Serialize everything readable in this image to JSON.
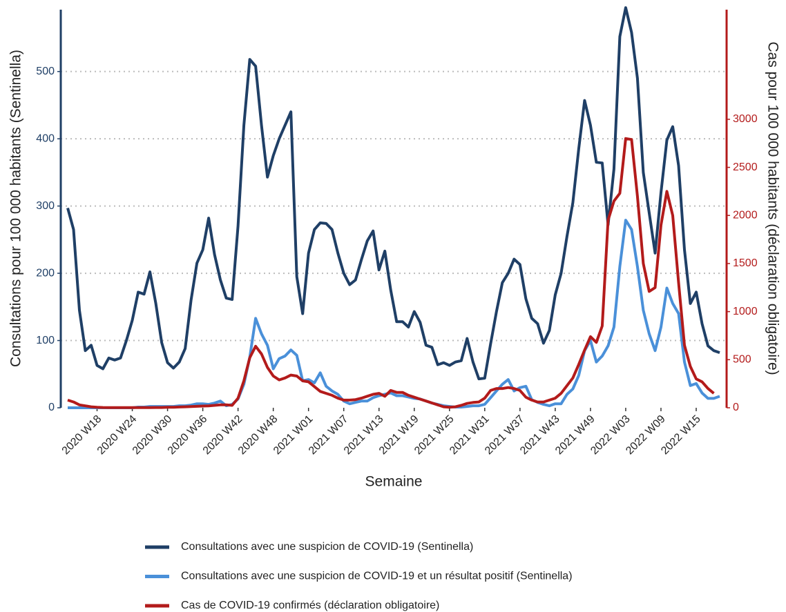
{
  "chart_data": {
    "type": "line",
    "x_label": "Semaine",
    "y_label": "Consultations pour 100 000 habitants (Sentinella)",
    "y2_label": "Cas pour 100 000 habitants (déclaration obligatoire)",
    "categories": [
      null,
      null,
      null,
      null,
      null,
      "2020 W18",
      null,
      null,
      null,
      null,
      null,
      "2020 W24",
      null,
      null,
      null,
      null,
      null,
      "2020 W30",
      null,
      null,
      null,
      null,
      null,
      "2020 W36",
      null,
      null,
      null,
      null,
      null,
      "2020 W42",
      null,
      null,
      null,
      null,
      null,
      "2020 W48",
      null,
      null,
      null,
      null,
      null,
      "2021 W01",
      null,
      null,
      null,
      null,
      null,
      "2021 W07",
      null,
      null,
      null,
      null,
      null,
      "2021 W13",
      null,
      null,
      null,
      null,
      null,
      "2021 W19",
      null,
      null,
      null,
      null,
      null,
      "2021 W25",
      null,
      null,
      null,
      null,
      null,
      "2021 W31",
      null,
      null,
      null,
      null,
      null,
      "2021 W37",
      null,
      null,
      null,
      null,
      null,
      "2021 W43",
      null,
      null,
      null,
      null,
      null,
      "2021 W49",
      null,
      null,
      null,
      null,
      null,
      "2022 W03",
      null,
      null,
      null,
      null,
      null,
      "2022 W09",
      null,
      null,
      null,
      null,
      null,
      "2022 W15",
      null,
      null,
      null,
      null
    ],
    "series": [
      {
        "name": "Consultations avec une suspicion de COVID-19 (Sentinella)",
        "color": "#1f3f66",
        "axis": "y",
        "values": [
          297,
          265,
          145,
          85,
          93,
          63,
          58,
          74,
          71,
          74,
          100,
          130,
          172,
          169,
          202,
          155,
          97,
          67,
          59,
          68,
          88,
          160,
          215,
          235,
          282,
          228,
          190,
          163,
          161,
          270,
          420,
          518,
          508,
          420,
          343,
          375,
          400,
          420,
          440,
          195,
          140,
          230,
          265,
          275,
          274,
          265,
          230,
          200,
          183,
          190,
          220,
          248,
          263,
          205,
          233,
          175,
          128,
          128,
          120,
          143,
          127,
          93,
          90,
          64,
          67,
          63,
          68,
          70,
          103,
          68,
          43,
          44,
          95,
          143,
          186,
          200,
          221,
          213,
          162,
          133,
          125,
          96,
          115,
          168,
          200,
          255,
          305,
          385,
          457,
          420,
          365,
          364,
          272,
          355,
          552,
          595,
          558,
          490,
          350,
          290,
          230,
          320,
          398,
          418,
          360,
          235,
          155,
          172,
          125,
          92,
          85,
          82
        ]
      },
      {
        "name": "Consultations avec une suspicion de COVID-19 et un résultat positif (Sentinella)",
        "color": "#4a90d9",
        "axis": "y",
        "values": [
          0,
          0,
          0,
          0,
          0,
          0,
          0,
          0,
          0,
          0,
          0,
          0,
          1,
          1,
          2,
          2,
          2,
          2,
          2,
          3,
          3,
          4,
          6,
          6,
          5,
          7,
          10,
          3,
          5,
          13,
          35,
          75,
          133,
          110,
          93,
          58,
          73,
          77,
          86,
          78,
          40,
          42,
          37,
          52,
          32,
          25,
          20,
          10,
          6,
          8,
          10,
          10,
          15,
          18,
          20,
          22,
          18,
          18,
          16,
          14,
          13,
          10,
          7,
          5,
          3,
          2,
          1,
          1,
          2,
          3,
          3,
          5,
          15,
          25,
          35,
          42,
          25,
          30,
          32,
          12,
          8,
          5,
          3,
          6,
          6,
          20,
          28,
          48,
          85,
          100,
          68,
          77,
          92,
          120,
          210,
          279,
          265,
          210,
          145,
          110,
          85,
          120,
          178,
          155,
          140,
          68,
          33,
          36,
          22,
          14,
          14,
          17
        ]
      },
      {
        "name": "Cas de COVID-19 confirmés (déclaration obligatoire)",
        "color": "#b31b1b",
        "axis": "y2",
        "values": [
          80,
          60,
          30,
          20,
          10,
          5,
          3,
          2,
          2,
          2,
          2,
          2,
          2,
          2,
          2,
          3,
          3,
          5,
          5,
          8,
          10,
          12,
          15,
          18,
          20,
          25,
          30,
          30,
          25,
          100,
          280,
          520,
          640,
          560,
          420,
          330,
          290,
          310,
          340,
          330,
          280,
          270,
          220,
          170,
          150,
          130,
          100,
          80,
          80,
          85,
          100,
          120,
          140,
          150,
          120,
          180,
          160,
          160,
          130,
          110,
          90,
          70,
          50,
          30,
          10,
          5,
          10,
          25,
          45,
          55,
          60,
          100,
          180,
          200,
          200,
          210,
          200,
          180,
          110,
          80,
          60,
          60,
          80,
          100,
          150,
          230,
          310,
          450,
          600,
          740,
          680,
          850,
          1950,
          2150,
          2230,
          2800,
          2790,
          2200,
          1500,
          1210,
          1250,
          1900,
          2250,
          2000,
          1300,
          650,
          430,
          300,
          270,
          200,
          150,
          null
        ]
      }
    ],
    "ylim": [
      0,
      592
    ],
    "yticks": [
      0,
      100,
      200,
      300,
      400,
      500
    ],
    "y2lim": [
      0,
      4140
    ],
    "y2ticks": [
      0,
      500,
      1000,
      1500,
      2000,
      2500,
      3000
    ],
    "grid": true
  }
}
